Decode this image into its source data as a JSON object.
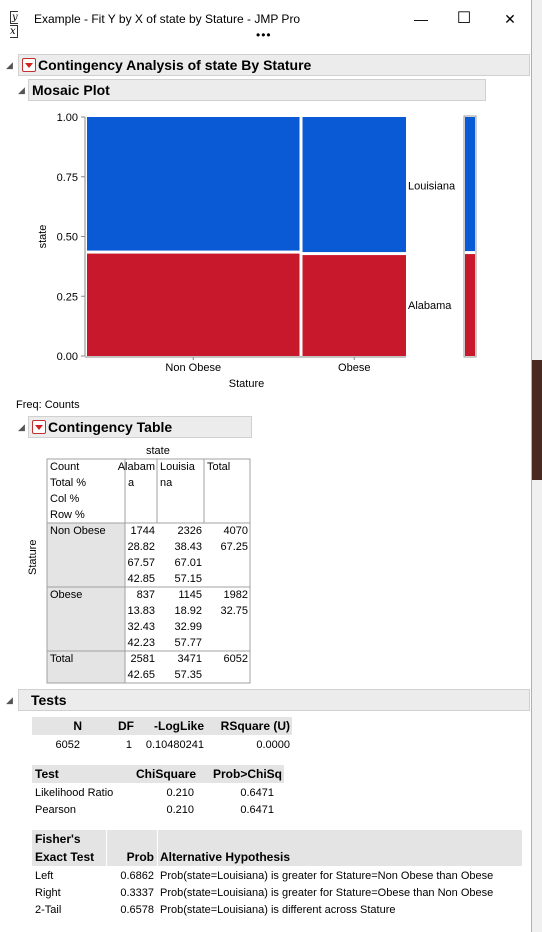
{
  "window": {
    "title": "Example - Fit Y by X of state by Stature - JMP Pro",
    "icon_text": "y x",
    "minimize": "—",
    "maximize": "☐",
    "close": "✕",
    "more": "•••"
  },
  "report": {
    "title": "Contingency Analysis of state By Stature",
    "mosaic_title": "Mosaic Plot",
    "freq_label": "Freq: Counts",
    "table_title": "Contingency Table",
    "tests_title": "Tests"
  },
  "mosaic": {
    "ylabel": "state",
    "xlabel": "Stature",
    "yticks": [
      "1.00",
      "0.75",
      "0.50",
      "0.25",
      "0.00"
    ],
    "categories": [
      "Non Obese",
      "Obese"
    ],
    "right_labels": [
      "Louisiana",
      "Alabama"
    ],
    "colors": {
      "Louisiana": "#0a5ad6",
      "Alabama": "#c8182c"
    }
  },
  "chart_data": {
    "type": "mosaic",
    "xlabel": "Stature",
    "ylabel": "state",
    "ylim": [
      0,
      1
    ],
    "categories": [
      "Non Obese",
      "Obese"
    ],
    "x_widths": [
      0.6725,
      0.3275
    ],
    "series": [
      {
        "name": "Alabama",
        "values": [
          0.4285,
          0.4223
        ]
      },
      {
        "name": "Louisiana",
        "values": [
          0.5715,
          0.5777
        ]
      }
    ],
    "marginal": {
      "Alabama": 0.4265,
      "Louisiana": 0.5735
    }
  },
  "contingency": {
    "col_var": "state",
    "row_var": "Stature",
    "legend": [
      "Count",
      "Total %",
      "Col %",
      "Row %"
    ],
    "col_headers": [
      [
        "Alabam",
        "a"
      ],
      [
        "Louisia",
        "na"
      ],
      [
        "Total",
        ""
      ]
    ],
    "rows": [
      {
        "label": "Non Obese",
        "alabama": [
          "1744",
          "28.82",
          "67.57",
          "42.85"
        ],
        "louisiana": [
          "2326",
          "38.43",
          "67.01",
          "57.15"
        ],
        "total": [
          "4070",
          "67.25"
        ]
      },
      {
        "label": "Obese",
        "alabama": [
          "837",
          "13.83",
          "32.43",
          "42.23"
        ],
        "louisiana": [
          "1145",
          "18.92",
          "32.99",
          "57.77"
        ],
        "total": [
          "1982",
          "32.75"
        ]
      }
    ],
    "total_row": {
      "label": "Total",
      "alabama": [
        "2581",
        "42.65"
      ],
      "louisiana": [
        "3471",
        "57.35"
      ],
      "total": "6052"
    }
  },
  "tests": {
    "summary_headers": [
      "N",
      "DF",
      "-LogLike",
      "RSquare (U)"
    ],
    "summary_values": [
      "6052",
      "1",
      "0.10480241",
      "0.0000"
    ],
    "chi_headers": [
      "Test",
      "ChiSquare",
      "Prob>ChiSq"
    ],
    "chi_rows": [
      [
        "Likelihood Ratio",
        "0.210",
        "0.6471"
      ],
      [
        "Pearson",
        "0.210",
        "0.6471"
      ]
    ],
    "fisher_headers": [
      "Fisher's",
      "Exact Test",
      "Prob",
      "Alternative Hypothesis"
    ],
    "fisher_rows": [
      [
        "Left",
        "0.6862",
        "Prob(state=Louisiana) is greater for Stature=Non Obese than Obese"
      ],
      [
        "Right",
        "0.3337",
        "Prob(state=Louisiana) is greater for Stature=Obese than Non Obese"
      ],
      [
        "2-Tail",
        "0.6578",
        "Prob(state=Louisiana) is different across Stature"
      ]
    ]
  }
}
